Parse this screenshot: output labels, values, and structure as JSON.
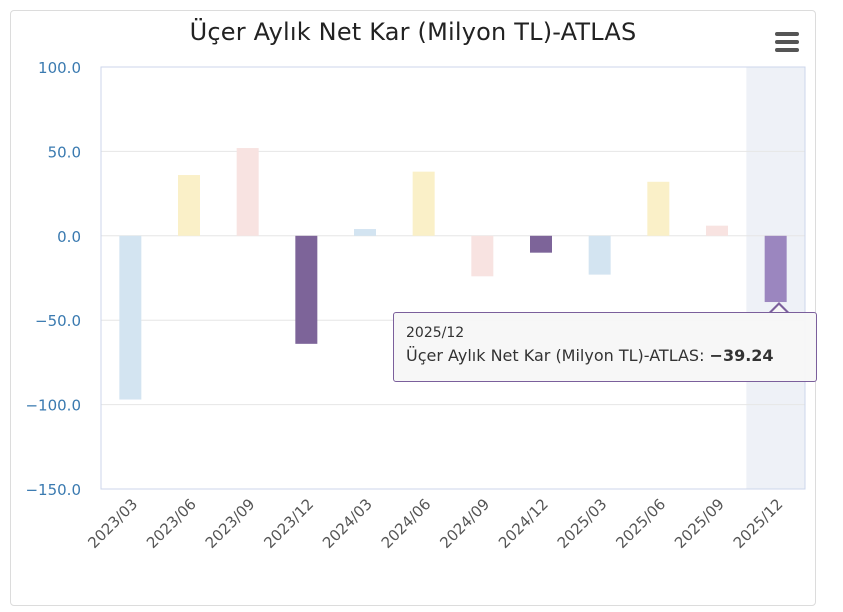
{
  "chart_data": {
    "type": "bar",
    "title": "Üçer Aylık Net Kar (Milyon TL)-ATLAS",
    "categories": [
      "2023/03",
      "2023/06",
      "2023/09",
      "2023/12",
      "2024/03",
      "2024/06",
      "2024/09",
      "2024/12",
      "2025/03",
      "2025/06",
      "2025/09",
      "2025/12"
    ],
    "series": [
      {
        "name": "Üçer Aylık Net Kar (Milyon TL)-ATLAS",
        "values": [
          -97,
          36,
          52,
          -64,
          4,
          38,
          -24,
          -10,
          -23,
          32,
          6,
          -39.24
        ]
      }
    ],
    "bar_colors": [
      "#d3e4f1",
      "#faf0c8",
      "#f8e3e1",
      "#7d6499",
      "#d3e4f1",
      "#faf0c8",
      "#f8e3e1",
      "#7d6499",
      "#d3e4f1",
      "#faf0c8",
      "#f8e3e1",
      "#9b86bf"
    ],
    "ylim": [
      -150,
      100
    ],
    "yticks": [
      "100.0",
      "50.0",
      "0.0",
      "−50.0",
      "−100.0",
      "−150.0"
    ],
    "ytick_values": [
      100,
      50,
      0,
      -50,
      -100,
      -150
    ],
    "grid": true,
    "highlight_index": 11,
    "highlight_color": "#eef1f7",
    "axis_label_color": "#3a7ab0"
  },
  "tooltip": {
    "date": "2025/12",
    "series_label": "Üçer Aylık Net Kar (Milyon TL)-ATLAS: ",
    "value": "−39.24"
  },
  "menu": {
    "icon": "hamburger-menu-icon"
  }
}
